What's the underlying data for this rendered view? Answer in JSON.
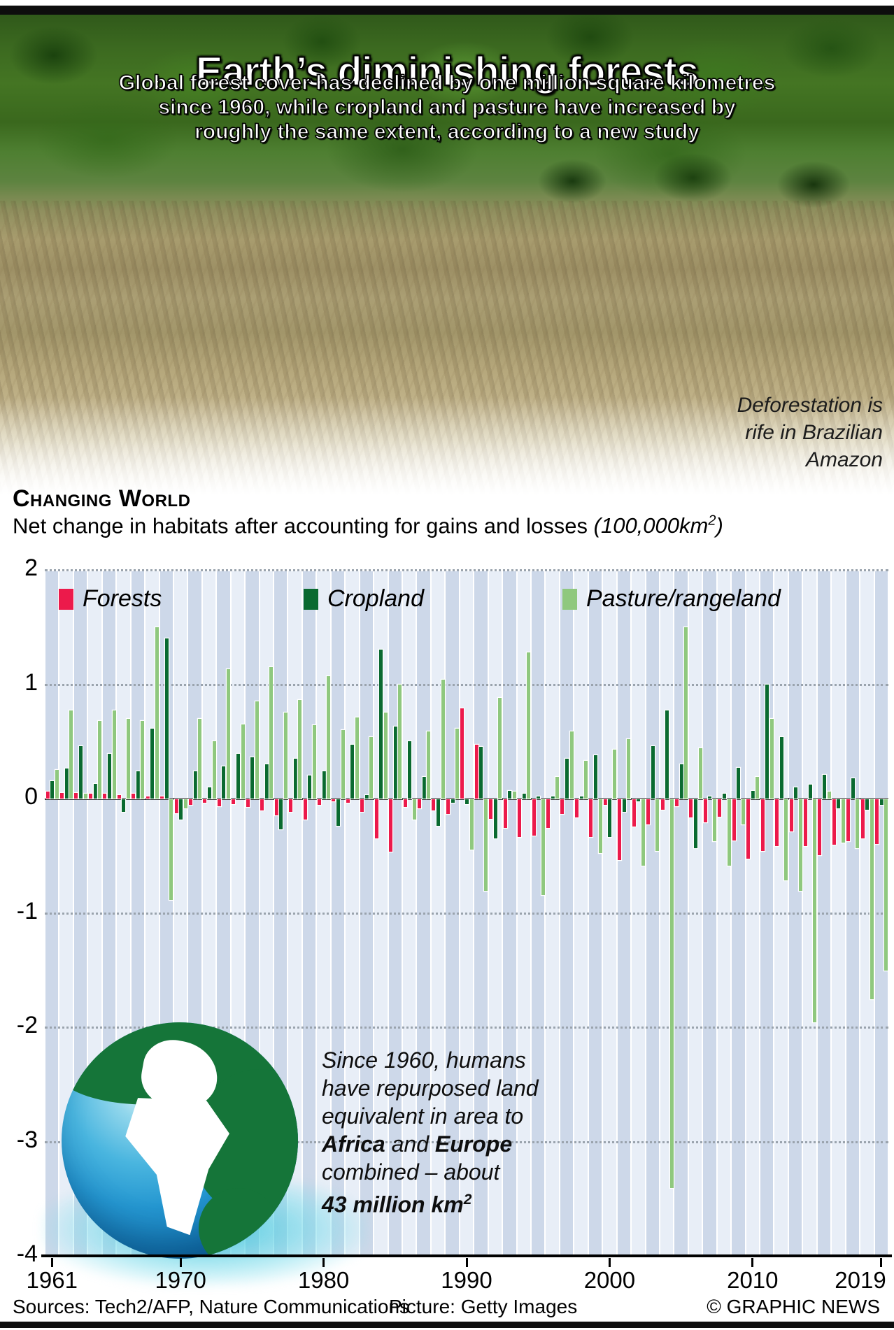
{
  "header": {
    "title": "Earth’s diminishing forests",
    "subtitle_lines": [
      "Global forest cover has declined by one million square kilometres",
      "since 1960, while cropland and pasture have increased by",
      "roughly the same extent, according to a new study"
    ]
  },
  "photo": {
    "caption_lines": [
      "Deforestation is",
      "rife in Brazilian",
      "Amazon"
    ]
  },
  "section": {
    "kicker": "Changing World"
  },
  "chart_data": {
    "type": "bar",
    "title": "Net change in habitats after accounting for gains and losses",
    "unit_pre": "(100,000km",
    "unit_sup": "2",
    "unit_post": ")",
    "x_start": 1961,
    "x_end": 2019,
    "x_tick_labels": [
      "1961",
      "1970",
      "1980",
      "1990",
      "2000",
      "2010",
      "2019"
    ],
    "y_ticks": [
      2,
      1,
      0,
      -1,
      -2,
      -3,
      -4
    ],
    "ylim": [
      -4,
      2
    ],
    "grid": "dotted horizontal",
    "legend_position": "top inside",
    "background_stripes": [
      "#cdd8e9",
      "#e8eef7"
    ],
    "series": [
      {
        "name": "Forests",
        "color": "#EC1A4B",
        "values": [
          0.06,
          0.05,
          0.05,
          0.04,
          0.04,
          0.03,
          0.04,
          0.02,
          0.02,
          -0.12,
          -0.05,
          -0.03,
          -0.06,
          -0.04,
          -0.07,
          -0.1,
          -0.14,
          -0.11,
          -0.18,
          -0.05,
          -0.02,
          -0.03,
          -0.11,
          -0.34,
          -0.46,
          -0.07,
          -0.08,
          -0.1,
          -0.13,
          0.79,
          0.47,
          -0.17,
          -0.25,
          -0.33,
          -0.32,
          -0.25,
          -0.13,
          -0.16,
          -0.33,
          -0.05,
          -0.53,
          -0.24,
          -0.22,
          -0.09,
          -0.06,
          -0.16,
          -0.2,
          -0.15,
          -0.36,
          -0.52,
          -0.45,
          -0.41,
          -0.28,
          -0.41,
          -0.49,
          -0.4,
          -0.37,
          -0.34,
          -0.39
        ]
      },
      {
        "name": "Cropland",
        "color": "#0A6A30",
        "values": [
          0.15,
          0.26,
          0.46,
          0.13,
          0.39,
          -0.11,
          0.24,
          0.61,
          1.4,
          -0.18,
          0.24,
          0.1,
          0.28,
          0.39,
          0.36,
          0.3,
          -0.26,
          0.35,
          0.2,
          0.24,
          -0.23,
          0.47,
          0.03,
          1.3,
          0.63,
          0.5,
          0.19,
          -0.23,
          -0.03,
          -0.04,
          0.45,
          -0.34,
          0.07,
          0.04,
          0.02,
          0.02,
          0.35,
          0.01,
          0.38,
          -0.33,
          -0.11,
          -0.01,
          0.46,
          0.77,
          0.3,
          -0.43,
          0.02,
          0.04,
          0.27,
          0.07,
          1.0,
          0.54,
          0.1,
          0.12,
          0.21,
          -0.08,
          0.18,
          -0.09,
          -0.05
        ]
      },
      {
        "name": "Pasture/rangeland",
        "color": "#8FC87E",
        "values": [
          0.25,
          0.77,
          0.04,
          0.68,
          0.77,
          0.7,
          0.68,
          1.5,
          -0.88,
          -0.08,
          0.7,
          0.5,
          1.13,
          0.65,
          0.85,
          1.15,
          0.75,
          0.86,
          0.64,
          1.07,
          0.6,
          0.71,
          0.54,
          0.75,
          1.0,
          -0.18,
          0.59,
          1.04,
          0.61,
          -0.44,
          -0.8,
          0.88,
          0.06,
          1.28,
          -0.84,
          0.19,
          0.59,
          0.33,
          -0.47,
          0.43,
          0.52,
          -0.58,
          -0.45,
          -3.4,
          1.5,
          0.44,
          -0.37,
          -0.58,
          -0.22,
          0.19,
          0.7,
          -0.71,
          -0.8,
          -1.95,
          0.06,
          -0.38,
          -0.43,
          -1.75,
          -1.5
        ]
      }
    ]
  },
  "fact": {
    "lines": [
      [
        {
          "t": "Since 1960, humans"
        }
      ],
      [
        {
          "t": "have repurposed land"
        }
      ],
      [
        {
          "t": "equivalent in area to"
        }
      ],
      [
        {
          "t": "Africa",
          "b": 1
        },
        {
          "t": " and "
        },
        {
          "t": "Europe",
          "b": 1
        }
      ],
      [
        {
          "t": "combined – about"
        }
      ],
      [
        {
          "t": "43 million km",
          "b": 1
        },
        {
          "t": "2",
          "b": 1,
          "s": 1
        }
      ]
    ]
  },
  "footer": {
    "sources": "Sources: Tech2/AFP, Nature Communications",
    "picture": "Picture: Getty Images",
    "credit": "© GRAPHIC NEWS"
  }
}
